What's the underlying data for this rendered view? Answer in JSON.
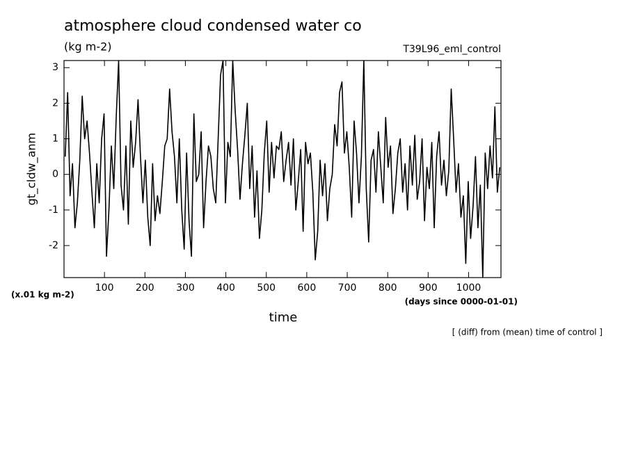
{
  "chart_data": {
    "type": "line",
    "title": "atmosphere cloud condensed water co",
    "subtitle": "(kg m-2)",
    "run_label": "T39L96_eml_control",
    "y_label": "gt_cldw_anm",
    "y_unit": "(x.01 kg m-2)",
    "x_unit": "(days since 0000-01-01)",
    "x_label": "time",
    "note": "[ (diff) from (mean) time of control ]",
    "color": "#000000",
    "xlim": [
      0,
      1080
    ],
    "xticks": [
      100,
      200,
      300,
      400,
      500,
      600,
      700,
      800,
      900,
      1000
    ],
    "ylim": [
      -2.9,
      3.2
    ],
    "yticks": [
      -2,
      -1,
      0,
      1,
      2,
      3
    ],
    "x": [
      3,
      9,
      15,
      21,
      27,
      33,
      39,
      45,
      51,
      57,
      63,
      69,
      75,
      81,
      87,
      93,
      99,
      105,
      111,
      117,
      123,
      129,
      135,
      141,
      147,
      153,
      159,
      165,
      171,
      177,
      183,
      189,
      195,
      201,
      207,
      213,
      219,
      225,
      231,
      237,
      243,
      249,
      255,
      261,
      267,
      273,
      279,
      285,
      291,
      297,
      303,
      309,
      315,
      321,
      327,
      333,
      339,
      345,
      351,
      357,
      363,
      369,
      375,
      381,
      387,
      393,
      399,
      405,
      411,
      417,
      423,
      429,
      435,
      441,
      447,
      453,
      459,
      465,
      471,
      477,
      483,
      489,
      495,
      501,
      507,
      513,
      519,
      525,
      531,
      537,
      543,
      549,
      555,
      561,
      567,
      573,
      579,
      585,
      591,
      597,
      603,
      609,
      615,
      621,
      627,
      633,
      639,
      645,
      651,
      657,
      663,
      669,
      675,
      681,
      687,
      693,
      699,
      705,
      711,
      717,
      723,
      729,
      735,
      741,
      747,
      753,
      759,
      765,
      771,
      777,
      783,
      789,
      795,
      801,
      807,
      813,
      819,
      825,
      831,
      837,
      843,
      849,
      855,
      861,
      867,
      873,
      879,
      885,
      891,
      897,
      903,
      909,
      915,
      921,
      927,
      933,
      939,
      945,
      951,
      957,
      963,
      969,
      975,
      981,
      987,
      993,
      999,
      1005,
      1011,
      1017,
      1023,
      1029,
      1035,
      1041,
      1047,
      1053,
      1059,
      1065,
      1071,
      1077
    ],
    "values": [
      0.5,
      2.3,
      -0.6,
      0.3,
      -1.5,
      -0.8,
      0.4,
      2.2,
      1.0,
      1.5,
      0.6,
      -0.5,
      -1.5,
      0.3,
      -0.8,
      1.0,
      1.7,
      -2.3,
      -1.0,
      0.8,
      -0.4,
      1.6,
      3.2,
      -0.3,
      -1.0,
      0.8,
      -1.4,
      1.5,
      0.2,
      0.9,
      2.1,
      0.5,
      -0.8,
      0.4,
      -1.2,
      -2.0,
      0.3,
      -1.3,
      -0.6,
      -1.1,
      -0.2,
      0.8,
      1.0,
      2.4,
      1.2,
      0.5,
      -0.8,
      1.0,
      -1.0,
      -2.1,
      0.6,
      -1.3,
      -2.3,
      1.7,
      -0.2,
      0.0,
      1.2,
      -1.5,
      -0.2,
      0.8,
      0.5,
      -0.4,
      -0.8,
      1.0,
      2.8,
      3.2,
      -0.8,
      0.9,
      0.5,
      3.2,
      1.8,
      0.7,
      -0.7,
      0.3,
      1.1,
      2.0,
      -0.4,
      0.8,
      -1.2,
      0.1,
      -1.8,
      -1.0,
      0.6,
      1.5,
      -0.5,
      0.9,
      -0.1,
      0.8,
      0.7,
      1.2,
      -0.2,
      0.4,
      0.9,
      -0.3,
      1.0,
      -1.0,
      -0.2,
      0.7,
      -1.6,
      0.9,
      0.3,
      0.6,
      -0.5,
      -2.4,
      -1.6,
      0.4,
      -0.6,
      0.3,
      -1.3,
      -0.4,
      0.0,
      1.4,
      0.8,
      2.3,
      2.6,
      0.6,
      1.2,
      0.2,
      -1.2,
      1.5,
      0.6,
      -0.8,
      0.5,
      3.2,
      -0.4,
      -1.9,
      0.4,
      0.7,
      -0.5,
      1.2,
      0.2,
      -0.8,
      1.6,
      0.2,
      0.8,
      -1.1,
      -0.4,
      0.6,
      1.0,
      -0.5,
      0.3,
      -1.0,
      0.8,
      -0.3,
      1.1,
      -0.7,
      -0.2,
      1.0,
      -1.3,
      0.2,
      -0.4,
      0.9,
      -1.5,
      0.5,
      1.2,
      -0.3,
      0.4,
      -0.6,
      0.1,
      2.4,
      1.0,
      -0.5,
      0.3,
      -1.2,
      -0.6,
      -2.5,
      -0.2,
      -1.8,
      -0.9,
      0.5,
      -1.5,
      -0.3,
      -2.9,
      0.6,
      -0.4,
      0.8,
      -0.1,
      1.9,
      -0.5,
      0.2
    ]
  }
}
